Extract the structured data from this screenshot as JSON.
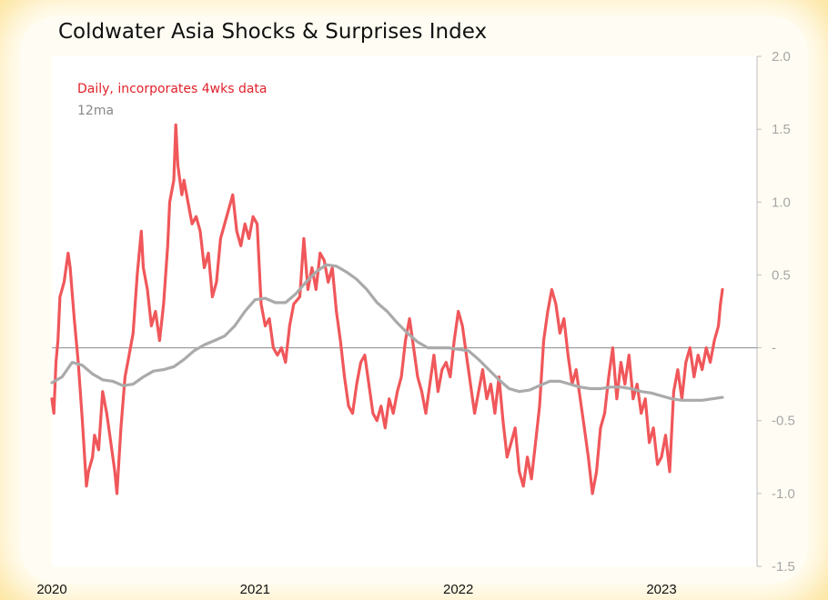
{
  "chart_data": {
    "type": "line",
    "title": "Coldwater Asia Shocks & Surprises Index",
    "xlabel": "",
    "ylabel": "",
    "x_ticks": [
      "2020",
      "2021",
      "2022",
      "2023"
    ],
    "y_ticks": [
      "2.0",
      "1.5",
      "1.0",
      "0.5",
      "-",
      "-0.5",
      "-1.0",
      "-1.5"
    ],
    "ylim": [
      -1.5,
      2.0
    ],
    "xlim": [
      2020.0,
      2023.47
    ],
    "grid": false,
    "zero_line": true,
    "legend_position": "top-left",
    "series": [
      {
        "name": "Daily, incorporates 4wks data",
        "color": "#f0575a",
        "points": [
          [
            2020.0,
            -0.35
          ],
          [
            2020.01,
            -0.45
          ],
          [
            2020.02,
            -0.1
          ],
          [
            2020.03,
            0.05
          ],
          [
            2020.04,
            0.35
          ],
          [
            2020.06,
            0.45
          ],
          [
            2020.08,
            0.65
          ],
          [
            2020.09,
            0.55
          ],
          [
            2020.11,
            0.2
          ],
          [
            2020.13,
            -0.1
          ],
          [
            2020.15,
            -0.5
          ],
          [
            2020.17,
            -0.95
          ],
          [
            2020.18,
            -0.85
          ],
          [
            2020.2,
            -0.75
          ],
          [
            2020.21,
            -0.6
          ],
          [
            2020.23,
            -0.7
          ],
          [
            2020.25,
            -0.3
          ],
          [
            2020.27,
            -0.45
          ],
          [
            2020.29,
            -0.65
          ],
          [
            2020.31,
            -0.85
          ],
          [
            2020.32,
            -1.0
          ],
          [
            2020.34,
            -0.55
          ],
          [
            2020.36,
            -0.2
          ],
          [
            2020.38,
            -0.05
          ],
          [
            2020.4,
            0.1
          ],
          [
            2020.42,
            0.5
          ],
          [
            2020.44,
            0.8
          ],
          [
            2020.45,
            0.55
          ],
          [
            2020.47,
            0.4
          ],
          [
            2020.49,
            0.15
          ],
          [
            2020.51,
            0.25
          ],
          [
            2020.53,
            0.05
          ],
          [
            2020.55,
            0.3
          ],
          [
            2020.57,
            0.7
          ],
          [
            2020.58,
            1.0
          ],
          [
            2020.6,
            1.15
          ],
          [
            2020.61,
            1.53
          ],
          [
            2020.62,
            1.25
          ],
          [
            2020.64,
            1.05
          ],
          [
            2020.65,
            1.15
          ],
          [
            2020.67,
            1.0
          ],
          [
            2020.69,
            0.85
          ],
          [
            2020.71,
            0.9
          ],
          [
            2020.73,
            0.8
          ],
          [
            2020.75,
            0.55
          ],
          [
            2020.77,
            0.65
          ],
          [
            2020.79,
            0.35
          ],
          [
            2020.81,
            0.45
          ],
          [
            2020.83,
            0.75
          ],
          [
            2020.86,
            0.9
          ],
          [
            2020.89,
            1.05
          ],
          [
            2020.91,
            0.8
          ],
          [
            2020.93,
            0.7
          ],
          [
            2020.95,
            0.85
          ],
          [
            2020.97,
            0.75
          ],
          [
            2020.99,
            0.9
          ],
          [
            2021.01,
            0.85
          ],
          [
            2021.03,
            0.3
          ],
          [
            2021.05,
            0.15
          ],
          [
            2021.07,
            0.2
          ],
          [
            2021.09,
            0.0
          ],
          [
            2021.11,
            -0.05
          ],
          [
            2021.13,
            0.0
          ],
          [
            2021.15,
            -0.1
          ],
          [
            2021.17,
            0.15
          ],
          [
            2021.19,
            0.3
          ],
          [
            2021.22,
            0.35
          ],
          [
            2021.24,
            0.75
          ],
          [
            2021.26,
            0.4
          ],
          [
            2021.28,
            0.55
          ],
          [
            2021.3,
            0.4
          ],
          [
            2021.32,
            0.65
          ],
          [
            2021.34,
            0.6
          ],
          [
            2021.36,
            0.45
          ],
          [
            2021.38,
            0.55
          ],
          [
            2021.4,
            0.25
          ],
          [
            2021.42,
            0.05
          ],
          [
            2021.44,
            -0.2
          ],
          [
            2021.46,
            -0.4
          ],
          [
            2021.48,
            -0.45
          ],
          [
            2021.5,
            -0.25
          ],
          [
            2021.52,
            -0.1
          ],
          [
            2021.54,
            -0.05
          ],
          [
            2021.56,
            -0.25
          ],
          [
            2021.58,
            -0.45
          ],
          [
            2021.6,
            -0.5
          ],
          [
            2021.62,
            -0.4
          ],
          [
            2021.64,
            -0.55
          ],
          [
            2021.66,
            -0.35
          ],
          [
            2021.68,
            -0.45
          ],
          [
            2021.7,
            -0.3
          ],
          [
            2021.72,
            -0.2
          ],
          [
            2021.74,
            0.05
          ],
          [
            2021.76,
            0.2
          ],
          [
            2021.78,
            0.0
          ],
          [
            2021.8,
            -0.2
          ],
          [
            2021.82,
            -0.3
          ],
          [
            2021.84,
            -0.45
          ],
          [
            2021.86,
            -0.25
          ],
          [
            2021.88,
            -0.05
          ],
          [
            2021.9,
            -0.3
          ],
          [
            2021.92,
            -0.15
          ],
          [
            2021.94,
            -0.1
          ],
          [
            2021.96,
            -0.2
          ],
          [
            2021.98,
            0.05
          ],
          [
            2022.0,
            0.25
          ],
          [
            2022.02,
            0.15
          ],
          [
            2022.04,
            -0.05
          ],
          [
            2022.06,
            -0.25
          ],
          [
            2022.08,
            -0.45
          ],
          [
            2022.1,
            -0.3
          ],
          [
            2022.12,
            -0.15
          ],
          [
            2022.14,
            -0.35
          ],
          [
            2022.16,
            -0.25
          ],
          [
            2022.18,
            -0.45
          ],
          [
            2022.2,
            -0.2
          ],
          [
            2022.22,
            -0.5
          ],
          [
            2022.24,
            -0.75
          ],
          [
            2022.26,
            -0.65
          ],
          [
            2022.28,
            -0.55
          ],
          [
            2022.3,
            -0.85
          ],
          [
            2022.32,
            -0.95
          ],
          [
            2022.34,
            -0.75
          ],
          [
            2022.36,
            -0.9
          ],
          [
            2022.38,
            -0.65
          ],
          [
            2022.4,
            -0.4
          ],
          [
            2022.42,
            0.05
          ],
          [
            2022.44,
            0.25
          ],
          [
            2022.46,
            0.4
          ],
          [
            2022.48,
            0.3
          ],
          [
            2022.5,
            0.1
          ],
          [
            2022.52,
            0.2
          ],
          [
            2022.54,
            -0.05
          ],
          [
            2022.56,
            -0.25
          ],
          [
            2022.58,
            -0.15
          ],
          [
            2022.6,
            -0.35
          ],
          [
            2022.62,
            -0.55
          ],
          [
            2022.64,
            -0.75
          ],
          [
            2022.66,
            -1.0
          ],
          [
            2022.68,
            -0.85
          ],
          [
            2022.7,
            -0.55
          ],
          [
            2022.72,
            -0.45
          ],
          [
            2022.74,
            -0.2
          ],
          [
            2022.76,
            0.0
          ],
          [
            2022.78,
            -0.35
          ],
          [
            2022.8,
            -0.1
          ],
          [
            2022.82,
            -0.25
          ],
          [
            2022.84,
            -0.05
          ],
          [
            2022.86,
            -0.35
          ],
          [
            2022.88,
            -0.25
          ],
          [
            2022.9,
            -0.45
          ],
          [
            2022.92,
            -0.35
          ],
          [
            2022.94,
            -0.65
          ],
          [
            2022.96,
            -0.55
          ],
          [
            2022.98,
            -0.8
          ],
          [
            2023.0,
            -0.75
          ],
          [
            2023.02,
            -0.6
          ],
          [
            2023.04,
            -0.85
          ],
          [
            2023.06,
            -0.3
          ],
          [
            2023.08,
            -0.15
          ],
          [
            2023.1,
            -0.35
          ],
          [
            2023.12,
            -0.1
          ],
          [
            2023.14,
            0.0
          ],
          [
            2023.16,
            -0.2
          ],
          [
            2023.18,
            -0.05
          ],
          [
            2023.2,
            -0.15
          ],
          [
            2023.22,
            0.0
          ],
          [
            2023.24,
            -0.1
          ],
          [
            2023.26,
            0.05
          ],
          [
            2023.28,
            0.15
          ],
          [
            2023.29,
            0.3
          ],
          [
            2023.3,
            0.4
          ]
        ]
      },
      {
        "name": "12ma",
        "color": "#aaaaaa",
        "points": [
          [
            2020.0,
            -0.24
          ],
          [
            2020.05,
            -0.2
          ],
          [
            2020.1,
            -0.1
          ],
          [
            2020.15,
            -0.12
          ],
          [
            2020.2,
            -0.18
          ],
          [
            2020.25,
            -0.22
          ],
          [
            2020.3,
            -0.23
          ],
          [
            2020.35,
            -0.26
          ],
          [
            2020.4,
            -0.25
          ],
          [
            2020.45,
            -0.2
          ],
          [
            2020.5,
            -0.16
          ],
          [
            2020.55,
            -0.15
          ],
          [
            2020.6,
            -0.13
          ],
          [
            2020.65,
            -0.08
          ],
          [
            2020.7,
            -0.02
          ],
          [
            2020.75,
            0.02
          ],
          [
            2020.8,
            0.05
          ],
          [
            2020.85,
            0.08
          ],
          [
            2020.9,
            0.15
          ],
          [
            2020.95,
            0.25
          ],
          [
            2021.0,
            0.33
          ],
          [
            2021.05,
            0.34
          ],
          [
            2021.1,
            0.31
          ],
          [
            2021.15,
            0.31
          ],
          [
            2021.2,
            0.37
          ],
          [
            2021.25,
            0.45
          ],
          [
            2021.3,
            0.52
          ],
          [
            2021.35,
            0.57
          ],
          [
            2021.4,
            0.56
          ],
          [
            2021.45,
            0.52
          ],
          [
            2021.5,
            0.47
          ],
          [
            2021.55,
            0.4
          ],
          [
            2021.6,
            0.31
          ],
          [
            2021.65,
            0.25
          ],
          [
            2021.7,
            0.17
          ],
          [
            2021.75,
            0.1
          ],
          [
            2021.8,
            0.04
          ],
          [
            2021.85,
            0.0
          ],
          [
            2021.9,
            0.0
          ],
          [
            2021.95,
            0.0
          ],
          [
            2022.0,
            -0.01
          ],
          [
            2022.05,
            -0.02
          ],
          [
            2022.1,
            -0.08
          ],
          [
            2022.15,
            -0.15
          ],
          [
            2022.2,
            -0.22
          ],
          [
            2022.25,
            -0.28
          ],
          [
            2022.3,
            -0.3
          ],
          [
            2022.35,
            -0.29
          ],
          [
            2022.4,
            -0.26
          ],
          [
            2022.45,
            -0.23
          ],
          [
            2022.5,
            -0.23
          ],
          [
            2022.55,
            -0.25
          ],
          [
            2022.6,
            -0.27
          ],
          [
            2022.65,
            -0.28
          ],
          [
            2022.7,
            -0.28
          ],
          [
            2022.75,
            -0.27
          ],
          [
            2022.8,
            -0.27
          ],
          [
            2022.85,
            -0.28
          ],
          [
            2022.9,
            -0.3
          ],
          [
            2022.95,
            -0.31
          ],
          [
            2023.0,
            -0.33
          ],
          [
            2023.05,
            -0.35
          ],
          [
            2023.1,
            -0.36
          ],
          [
            2023.15,
            -0.36
          ],
          [
            2023.2,
            -0.36
          ],
          [
            2023.25,
            -0.35
          ],
          [
            2023.3,
            -0.34
          ]
        ]
      }
    ]
  },
  "legend": {
    "daily_label": "Daily, incorporates 4wks data",
    "ma_label": "12ma"
  }
}
